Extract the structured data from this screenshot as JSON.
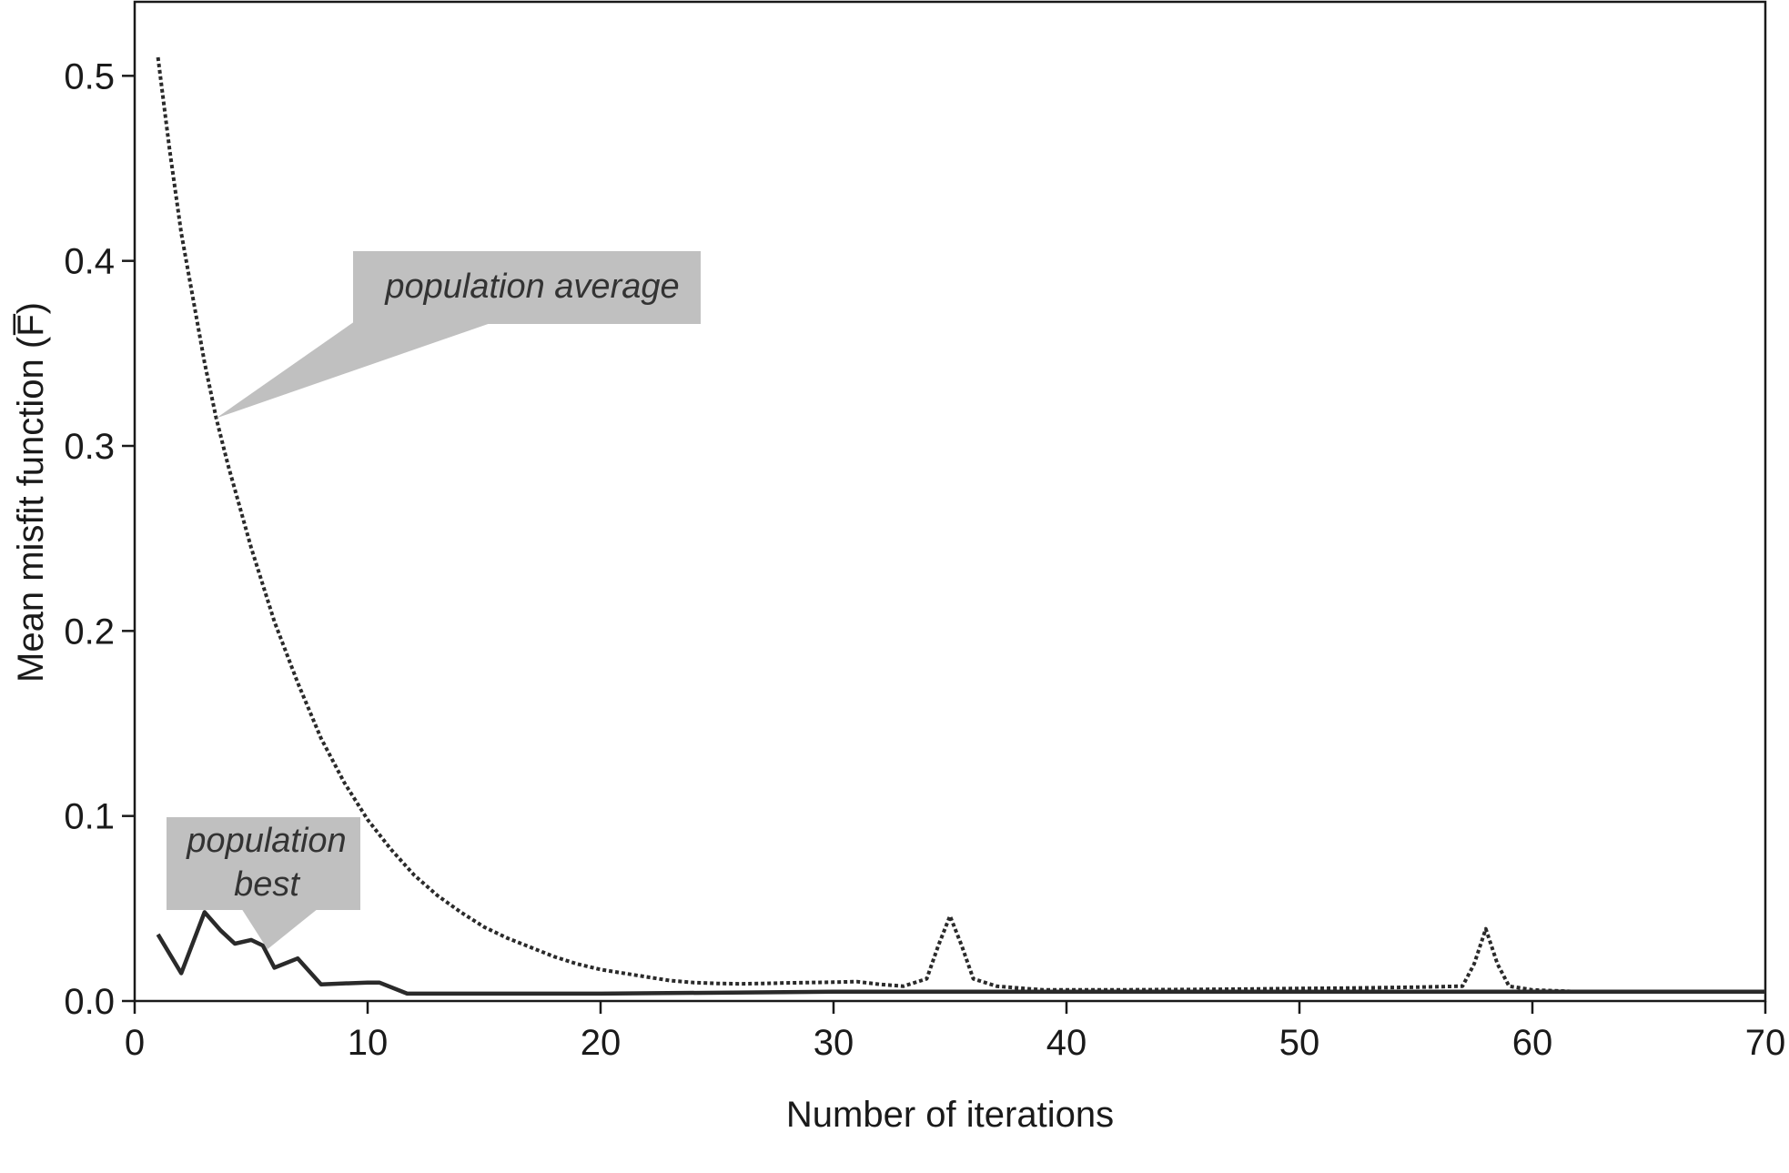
{
  "chart_data": {
    "type": "line",
    "title": "",
    "xlabel": "Number of iterations",
    "ylabel": "Mean misfit function (F̅)",
    "xlim": [
      0,
      70
    ],
    "ylim": [
      0,
      0.54
    ],
    "xticks": [
      0,
      10,
      20,
      30,
      40,
      50,
      60,
      70
    ],
    "xtick_labels": [
      "0",
      "10",
      "20",
      "30",
      "40",
      "50",
      "60",
      "70"
    ],
    "yticks": [
      0.0,
      0.1,
      0.2,
      0.3,
      0.4,
      0.5
    ],
    "ytick_labels": [
      "0.0",
      "0.1",
      "0.2",
      "0.3",
      "0.4",
      "0.5"
    ],
    "grid": false,
    "legend": "none",
    "series": [
      {
        "name": "population average",
        "style": "dotted",
        "color": "#2a2a2a",
        "x": [
          1,
          1.5,
          2,
          2.5,
          3,
          3.5,
          4,
          5,
          6,
          7,
          8,
          9,
          10,
          11,
          12,
          13,
          14,
          15,
          16,
          17,
          18,
          19,
          20,
          21,
          22,
          23,
          24,
          25,
          26,
          27,
          28,
          29,
          30,
          31,
          32,
          33,
          34,
          34.5,
          35,
          35.5,
          36,
          37,
          38,
          39,
          40,
          42,
          45,
          48,
          50,
          52,
          55,
          57,
          57.5,
          58,
          58.5,
          59,
          60,
          62,
          65,
          68,
          70
        ],
        "y": [
          0.51,
          0.46,
          0.415,
          0.38,
          0.345,
          0.315,
          0.29,
          0.245,
          0.205,
          0.172,
          0.142,
          0.118,
          0.098,
          0.082,
          0.068,
          0.057,
          0.048,
          0.04,
          0.034,
          0.029,
          0.024,
          0.02,
          0.017,
          0.015,
          0.013,
          0.011,
          0.01,
          0.0095,
          0.0093,
          0.0095,
          0.0098,
          0.01,
          0.0102,
          0.0105,
          0.009,
          0.008,
          0.012,
          0.03,
          0.046,
          0.03,
          0.012,
          0.008,
          0.007,
          0.006,
          0.006,
          0.006,
          0.0062,
          0.0065,
          0.0068,
          0.007,
          0.0075,
          0.008,
          0.02,
          0.039,
          0.02,
          0.008,
          0.006,
          0.005,
          0.005,
          0.005,
          0.005
        ]
      },
      {
        "name": "population best",
        "style": "solid",
        "color": "#2a2a2a",
        "x": [
          1,
          2,
          3,
          3.7,
          4.3,
          5,
          5.5,
          6,
          7,
          8,
          10,
          10.5,
          11.7,
          20,
          30,
          40,
          50,
          60,
          70
        ],
        "y": [
          0.036,
          0.015,
          0.048,
          0.038,
          0.031,
          0.033,
          0.03,
          0.018,
          0.023,
          0.009,
          0.01,
          0.01,
          0.004,
          0.004,
          0.005,
          0.005,
          0.005,
          0.005,
          0.005
        ]
      }
    ],
    "annotations": [
      {
        "text": "population average",
        "points_to": {
          "x": 3.5,
          "y": 0.315
        }
      },
      {
        "text_lines": [
          "population",
          "best"
        ],
        "points_to": {
          "x": 5.7,
          "y": 0.028
        }
      }
    ]
  },
  "colors": {
    "axis": "#1a1a1a",
    "line": "#2a2a2a",
    "annotation_box": "#c0c0c0",
    "background": "#ffffff"
  }
}
